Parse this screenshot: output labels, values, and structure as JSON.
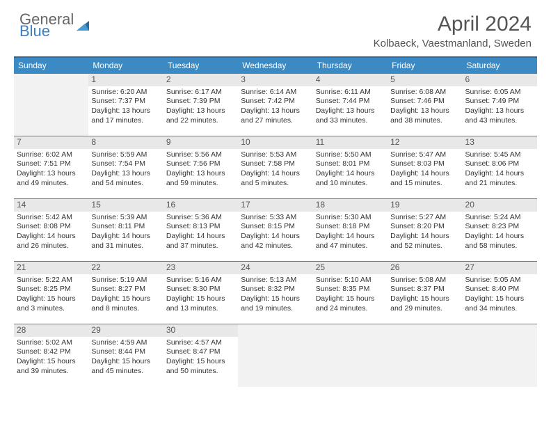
{
  "logo": {
    "line1": "General",
    "line2": "Blue"
  },
  "title": "April 2024",
  "subtitle": "Kolbaeck, Vaestmanland, Sweden",
  "colors": {
    "header_bg": "#3b8ac4",
    "header_text": "#ffffff",
    "row_shade": "#e8e8e8",
    "border": "#3b8ac4",
    "title_color": "#555555"
  },
  "day_headers": [
    "Sunday",
    "Monday",
    "Tuesday",
    "Wednesday",
    "Thursday",
    "Friday",
    "Saturday"
  ],
  "weeks": [
    [
      null,
      {
        "n": "1",
        "sr": "6:20 AM",
        "ss": "7:37 PM",
        "dl": "13 hours and 17 minutes."
      },
      {
        "n": "2",
        "sr": "6:17 AM",
        "ss": "7:39 PM",
        "dl": "13 hours and 22 minutes."
      },
      {
        "n": "3",
        "sr": "6:14 AM",
        "ss": "7:42 PM",
        "dl": "13 hours and 27 minutes."
      },
      {
        "n": "4",
        "sr": "6:11 AM",
        "ss": "7:44 PM",
        "dl": "13 hours and 33 minutes."
      },
      {
        "n": "5",
        "sr": "6:08 AM",
        "ss": "7:46 PM",
        "dl": "13 hours and 38 minutes."
      },
      {
        "n": "6",
        "sr": "6:05 AM",
        "ss": "7:49 PM",
        "dl": "13 hours and 43 minutes."
      }
    ],
    [
      {
        "n": "7",
        "sr": "6:02 AM",
        "ss": "7:51 PM",
        "dl": "13 hours and 49 minutes."
      },
      {
        "n": "8",
        "sr": "5:59 AM",
        "ss": "7:54 PM",
        "dl": "13 hours and 54 minutes."
      },
      {
        "n": "9",
        "sr": "5:56 AM",
        "ss": "7:56 PM",
        "dl": "13 hours and 59 minutes."
      },
      {
        "n": "10",
        "sr": "5:53 AM",
        "ss": "7:58 PM",
        "dl": "14 hours and 5 minutes."
      },
      {
        "n": "11",
        "sr": "5:50 AM",
        "ss": "8:01 PM",
        "dl": "14 hours and 10 minutes."
      },
      {
        "n": "12",
        "sr": "5:47 AM",
        "ss": "8:03 PM",
        "dl": "14 hours and 15 minutes."
      },
      {
        "n": "13",
        "sr": "5:45 AM",
        "ss": "8:06 PM",
        "dl": "14 hours and 21 minutes."
      }
    ],
    [
      {
        "n": "14",
        "sr": "5:42 AM",
        "ss": "8:08 PM",
        "dl": "14 hours and 26 minutes."
      },
      {
        "n": "15",
        "sr": "5:39 AM",
        "ss": "8:11 PM",
        "dl": "14 hours and 31 minutes."
      },
      {
        "n": "16",
        "sr": "5:36 AM",
        "ss": "8:13 PM",
        "dl": "14 hours and 37 minutes."
      },
      {
        "n": "17",
        "sr": "5:33 AM",
        "ss": "8:15 PM",
        "dl": "14 hours and 42 minutes."
      },
      {
        "n": "18",
        "sr": "5:30 AM",
        "ss": "8:18 PM",
        "dl": "14 hours and 47 minutes."
      },
      {
        "n": "19",
        "sr": "5:27 AM",
        "ss": "8:20 PM",
        "dl": "14 hours and 52 minutes."
      },
      {
        "n": "20",
        "sr": "5:24 AM",
        "ss": "8:23 PM",
        "dl": "14 hours and 58 minutes."
      }
    ],
    [
      {
        "n": "21",
        "sr": "5:22 AM",
        "ss": "8:25 PM",
        "dl": "15 hours and 3 minutes."
      },
      {
        "n": "22",
        "sr": "5:19 AM",
        "ss": "8:27 PM",
        "dl": "15 hours and 8 minutes."
      },
      {
        "n": "23",
        "sr": "5:16 AM",
        "ss": "8:30 PM",
        "dl": "15 hours and 13 minutes."
      },
      {
        "n": "24",
        "sr": "5:13 AM",
        "ss": "8:32 PM",
        "dl": "15 hours and 19 minutes."
      },
      {
        "n": "25",
        "sr": "5:10 AM",
        "ss": "8:35 PM",
        "dl": "15 hours and 24 minutes."
      },
      {
        "n": "26",
        "sr": "5:08 AM",
        "ss": "8:37 PM",
        "dl": "15 hours and 29 minutes."
      },
      {
        "n": "27",
        "sr": "5:05 AM",
        "ss": "8:40 PM",
        "dl": "15 hours and 34 minutes."
      }
    ],
    [
      {
        "n": "28",
        "sr": "5:02 AM",
        "ss": "8:42 PM",
        "dl": "15 hours and 39 minutes."
      },
      {
        "n": "29",
        "sr": "4:59 AM",
        "ss": "8:44 PM",
        "dl": "15 hours and 45 minutes."
      },
      {
        "n": "30",
        "sr": "4:57 AM",
        "ss": "8:47 PM",
        "dl": "15 hours and 50 minutes."
      },
      null,
      null,
      null,
      null
    ]
  ],
  "labels": {
    "sunrise": "Sunrise:",
    "sunset": "Sunset:",
    "daylight": "Daylight:"
  }
}
